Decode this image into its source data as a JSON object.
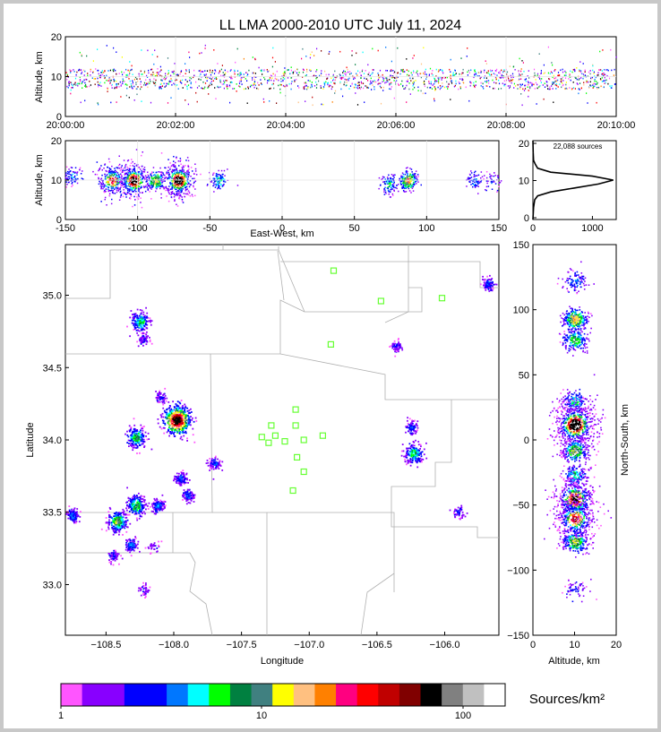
{
  "chart_data": [
    {
      "type": "scatter",
      "panel": "altitude-time",
      "title": "LL LMA 2000-2010 UTC July 11, 2024",
      "ylabel": "Altitude, km",
      "ylim": [
        0,
        20
      ],
      "yticks": [
        "0",
        "10",
        "20"
      ],
      "xlim_seconds": [
        0,
        600
      ],
      "xticks": [
        "20:00:00",
        "20:02:00",
        "20:04:00",
        "20:06:00",
        "20:08:00",
        "20:10:00"
      ],
      "altitude_band_km": [
        7,
        12
      ]
    },
    {
      "type": "scatter",
      "panel": "altitude-eastwest",
      "xlabel": "East-West, km",
      "ylabel": "Altitude, km",
      "xlim": [
        -150,
        150
      ],
      "ylim": [
        0,
        20
      ],
      "xticks": [
        "-150",
        "-100",
        "-50",
        "0",
        "50",
        "100",
        "150"
      ],
      "yticks": [
        "0",
        "10",
        "20"
      ],
      "clusters": [
        {
          "x": -145,
          "alt": 11,
          "n": 25
        },
        {
          "x": -118,
          "alt": 10,
          "n": 90
        },
        {
          "x": -103,
          "alt": 10,
          "n": 130
        },
        {
          "x": -88,
          "alt": 10,
          "n": 60
        },
        {
          "x": -72,
          "alt": 10,
          "n": 140
        },
        {
          "x": -44,
          "alt": 10,
          "n": 35
        },
        {
          "x": 73,
          "alt": 9,
          "n": 35
        },
        {
          "x": 87,
          "alt": 10,
          "n": 70
        },
        {
          "x": 133,
          "alt": 10,
          "n": 25
        },
        {
          "x": 145,
          "alt": 10,
          "n": 12
        }
      ]
    },
    {
      "type": "line",
      "panel": "altitude-histogram",
      "annotation": "22,088 sources",
      "xlim": [
        0,
        1400
      ],
      "ylim": [
        0,
        20
      ],
      "xticks": [
        "0",
        "1000"
      ],
      "yticks": [
        "0",
        "10",
        "20"
      ],
      "altitude_km": [
        0,
        3,
        5,
        6,
        7,
        8,
        9,
        10,
        11,
        12,
        13,
        14,
        15,
        17,
        20
      ],
      "count": [
        0,
        10,
        30,
        80,
        300,
        700,
        1100,
        1350,
        1000,
        300,
        80,
        40,
        10,
        5,
        0
      ]
    },
    {
      "type": "scatter",
      "panel": "plan-view",
      "xlabel": "Longitude",
      "ylabel": "Latitude",
      "xlim": [
        -108.8,
        -105.6
      ],
      "ylim": [
        32.65,
        35.35
      ],
      "xticks": [
        "−108.5",
        "−108.0",
        "−107.5",
        "−107.0",
        "−106.5",
        "−106.0"
      ],
      "yticks": [
        "33.0",
        "33.5",
        "34.0",
        "34.5",
        "35.0"
      ],
      "stations": [
        [
          -106.82,
          35.17
        ],
        [
          -106.47,
          34.96
        ],
        [
          -106.02,
          34.98
        ],
        [
          -106.84,
          34.66
        ],
        [
          -107.1,
          34.21
        ],
        [
          -107.28,
          34.1
        ],
        [
          -107.1,
          34.1
        ],
        [
          -107.35,
          34.02
        ],
        [
          -107.25,
          34.03
        ],
        [
          -107.18,
          33.99
        ],
        [
          -107.3,
          33.98
        ],
        [
          -107.04,
          34.0
        ],
        [
          -106.9,
          34.03
        ],
        [
          -107.09,
          33.88
        ],
        [
          -107.04,
          33.78
        ],
        [
          -107.12,
          33.65
        ]
      ],
      "clusters": [
        {
          "lon": -108.75,
          "lat": 33.48,
          "n": 30
        },
        {
          "lon": -108.42,
          "lat": 33.44,
          "n": 60
        },
        {
          "lon": -108.32,
          "lat": 33.28,
          "n": 30
        },
        {
          "lon": -108.45,
          "lat": 33.2,
          "n": 15
        },
        {
          "lon": -108.28,
          "lat": 33.55,
          "n": 50
        },
        {
          "lon": -108.12,
          "lat": 33.55,
          "n": 30
        },
        {
          "lon": -108.28,
          "lat": 34.02,
          "n": 50
        },
        {
          "lon": -108.25,
          "lat": 34.82,
          "n": 45
        },
        {
          "lon": -108.23,
          "lat": 34.7,
          "n": 15
        },
        {
          "lon": -108.1,
          "lat": 34.3,
          "n": 15
        },
        {
          "lon": -107.98,
          "lat": 34.14,
          "n": 120
        },
        {
          "lon": -107.95,
          "lat": 33.74,
          "n": 25
        },
        {
          "lon": -107.9,
          "lat": 33.62,
          "n": 25
        },
        {
          "lon": -107.7,
          "lat": 33.84,
          "n": 20
        },
        {
          "lon": -108.15,
          "lat": 33.26,
          "n": 8
        },
        {
          "lon": -108.22,
          "lat": 32.97,
          "n": 10
        },
        {
          "lon": -106.36,
          "lat": 34.65,
          "n": 15
        },
        {
          "lon": -106.25,
          "lat": 34.09,
          "n": 20
        },
        {
          "lon": -106.23,
          "lat": 33.91,
          "n": 45
        },
        {
          "lon": -105.68,
          "lat": 35.08,
          "n": 25
        },
        {
          "lon": -105.9,
          "lat": 33.5,
          "n": 12
        }
      ]
    },
    {
      "type": "scatter",
      "panel": "altitude-northsouth",
      "xlabel": "Altitude, km",
      "ylabel": "North-South, km",
      "xlim": [
        0,
        20
      ],
      "ylim": [
        -150,
        150
      ],
      "xticks": [
        "0",
        "10",
        "20"
      ],
      "yticks": [
        "−150",
        "−100",
        "−50",
        "0",
        "50",
        "100",
        "150"
      ],
      "clusters": [
        {
          "alt": 10,
          "y": 122,
          "n": 25
        },
        {
          "alt": 10,
          "y": 93,
          "n": 70
        },
        {
          "alt": 10,
          "y": 77,
          "n": 50
        },
        {
          "alt": 10,
          "y": 30,
          "n": 40
        },
        {
          "alt": 10,
          "y": 12,
          "n": 160
        },
        {
          "alt": 10,
          "y": -8,
          "n": 60
        },
        {
          "alt": 10,
          "y": -27,
          "n": 40
        },
        {
          "alt": 10,
          "y": -45,
          "n": 120
        },
        {
          "alt": 10,
          "y": -60,
          "n": 100
        },
        {
          "alt": 10,
          "y": -78,
          "n": 60
        },
        {
          "alt": 10,
          "y": -115,
          "n": 15
        }
      ]
    },
    {
      "type": "heatmap",
      "panel": "colorbar",
      "label": "Sources/km²",
      "ticks": [
        "1",
        "10",
        "100"
      ],
      "colors": [
        "#ff55ff",
        "#8800ff",
        "#8800ff",
        "#0000ff",
        "#0000ff",
        "#0077ff",
        "#00ffff",
        "#00ff00",
        "#008040",
        "#408080",
        "#ffff00",
        "#ffc080",
        "#ff8000",
        "#ff0080",
        "#ff0000",
        "#c00000",
        "#800000",
        "#000000",
        "#808080",
        "#c0c0c0",
        "#ffffff"
      ]
    }
  ]
}
